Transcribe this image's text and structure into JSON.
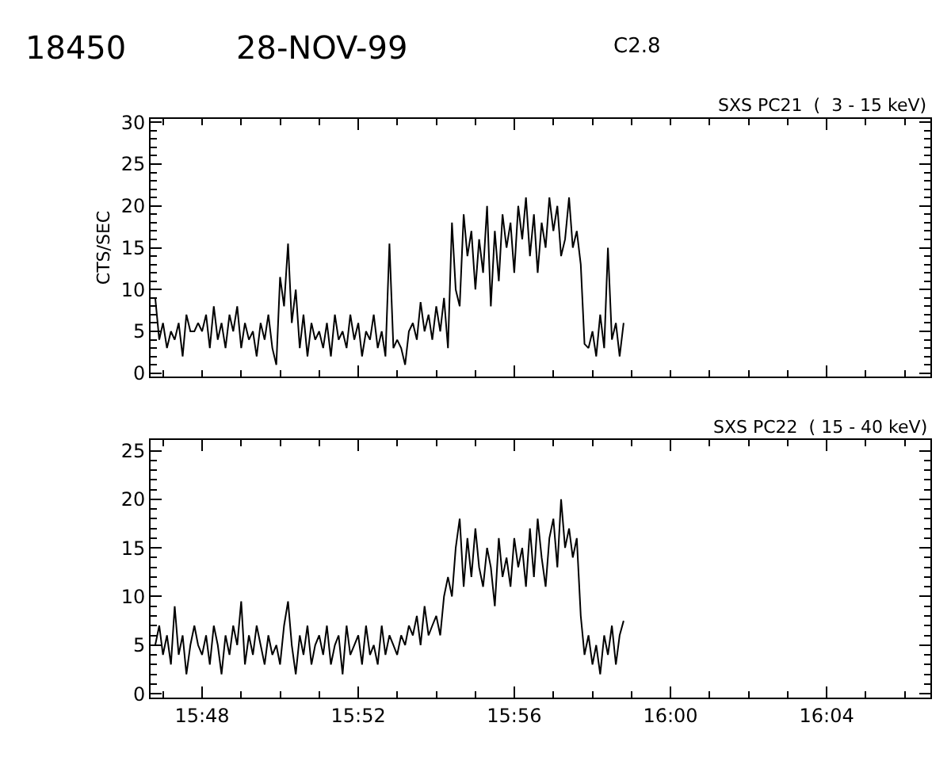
{
  "chart_data": [
    {
      "type": "line",
      "title": "18450",
      "annotations": [
        "28-NOV-99",
        "C2.8"
      ],
      "subtitle": "SXS PC21  (  3 - 15 keV)",
      "ylabel": "CTS/SEC",
      "x": [
        15.78,
        15.7817,
        15.7833,
        15.785,
        15.7867,
        15.7883,
        15.79,
        15.7917,
        15.7933,
        15.795,
        15.7967,
        15.7983,
        15.8,
        15.8017,
        15.8033,
        15.805,
        15.8067,
        15.8083,
        15.81,
        15.8117,
        15.8133,
        15.815,
        15.8167,
        15.8183,
        15.82,
        15.8217,
        15.8233,
        15.825,
        15.8267,
        15.8283,
        15.83,
        15.8317,
        15.8333,
        15.835,
        15.8367,
        15.8383,
        15.84,
        15.8417,
        15.8433,
        15.845,
        15.8467,
        15.8483,
        15.85,
        15.8517,
        15.8533,
        15.855,
        15.8567,
        15.8583,
        15.86,
        15.8617,
        15.8633,
        15.865,
        15.8667,
        15.8683,
        15.87,
        15.8717,
        15.8733,
        15.875,
        15.8767,
        15.8783,
        15.88,
        15.8817,
        15.8833,
        15.885,
        15.8867,
        15.8883,
        15.89,
        15.8917,
        15.8933,
        15.895,
        15.8967,
        15.8983,
        15.9,
        15.9017,
        15.9033,
        15.905,
        15.9067,
        15.9083,
        15.91,
        15.9117,
        15.9133,
        15.915,
        15.9167,
        15.9183,
        15.92,
        15.9217,
        15.9233,
        15.925,
        15.9267,
        15.9283,
        15.93,
        15.9317,
        15.9333,
        15.935,
        15.9367,
        15.9383,
        15.94,
        15.9417,
        15.9433,
        15.945,
        15.9467,
        15.9483,
        15.95,
        15.9517,
        15.9533,
        15.955,
        15.9567,
        15.9583,
        15.96,
        15.9617,
        15.9633,
        15.965,
        15.9667,
        15.9683,
        15.97,
        15.9717,
        15.9733,
        15.975,
        15.9767,
        15.9783,
        15.98
      ],
      "series": [
        {
          "color": "#000000",
          "values": [
            9,
            4,
            6,
            3,
            5,
            4,
            6,
            2,
            7,
            5,
            5,
            6,
            5,
            7,
            3,
            8,
            4,
            6,
            3,
            7,
            5,
            8,
            3,
            6,
            4,
            5,
            2,
            6,
            4,
            7,
            3,
            1,
            11.5,
            8,
            15.5,
            6,
            10,
            3,
            7,
            2,
            6,
            4,
            5,
            3,
            6,
            2,
            7,
            4,
            5,
            3,
            7,
            4,
            6,
            2,
            5,
            4,
            7,
            3,
            5,
            2,
            15.5,
            3,
            4,
            3,
            1,
            5,
            6,
            4,
            8.5,
            5,
            7,
            4,
            8,
            5,
            9,
            3,
            18,
            10,
            8,
            19,
            14,
            17,
            10,
            16,
            12,
            20,
            8,
            17,
            11,
            19,
            15,
            18,
            12,
            20,
            16,
            21,
            14,
            19,
            12,
            18,
            15,
            21,
            17,
            20,
            14,
            16,
            21,
            15,
            17,
            13,
            3.5,
            3,
            5,
            2,
            7,
            3,
            15,
            4,
            6,
            2,
            6
          ]
        }
      ],
      "xlim": [
        15.778,
        16.111
      ],
      "xticks": [
        {
          "value": 15.8,
          "label": null
        },
        {
          "value": 15.8667,
          "label": null
        },
        {
          "value": 15.9333,
          "label": null
        },
        {
          "value": 16.0,
          "label": null
        },
        {
          "value": 16.0667,
          "label": null
        }
      ],
      "ylim": [
        -0.4,
        30.4
      ],
      "yticks": [
        0,
        5,
        10,
        15,
        20,
        25,
        30
      ],
      "tick_labels": "y",
      "line_style": "solid",
      "marker": "none"
    },
    {
      "type": "line",
      "subtitle": "SXS PC22  ( 15 - 40 keV)",
      "x": [
        15.78,
        15.7817,
        15.7833,
        15.785,
        15.7867,
        15.7883,
        15.79,
        15.7917,
        15.7933,
        15.795,
        15.7967,
        15.7983,
        15.8,
        15.8017,
        15.8033,
        15.805,
        15.8067,
        15.8083,
        15.81,
        15.8117,
        15.8133,
        15.815,
        15.8167,
        15.8183,
        15.82,
        15.8217,
        15.8233,
        15.825,
        15.8267,
        15.8283,
        15.83,
        15.8317,
        15.8333,
        15.835,
        15.8367,
        15.8383,
        15.84,
        15.8417,
        15.8433,
        15.845,
        15.8467,
        15.8483,
        15.85,
        15.8517,
        15.8533,
        15.855,
        15.8567,
        15.8583,
        15.86,
        15.8617,
        15.8633,
        15.865,
        15.8667,
        15.8683,
        15.87,
        15.8717,
        15.8733,
        15.875,
        15.8767,
        15.8783,
        15.88,
        15.8817,
        15.8833,
        15.885,
        15.8867,
        15.8883,
        15.89,
        15.8917,
        15.8933,
        15.895,
        15.8967,
        15.8983,
        15.9,
        15.9017,
        15.9033,
        15.905,
        15.9067,
        15.9083,
        15.91,
        15.9117,
        15.9133,
        15.915,
        15.9167,
        15.9183,
        15.92,
        15.9217,
        15.9233,
        15.925,
        15.9267,
        15.9283,
        15.93,
        15.9317,
        15.9333,
        15.935,
        15.9367,
        15.9383,
        15.94,
        15.9417,
        15.9433,
        15.945,
        15.9467,
        15.9483,
        15.95,
        15.9517,
        15.9533,
        15.955,
        15.9567,
        15.9583,
        15.96,
        15.9617,
        15.9633,
        15.965,
        15.9667,
        15.9683,
        15.97,
        15.9717,
        15.9733,
        15.975,
        15.9767,
        15.9783,
        15.98
      ],
      "series": [
        {
          "color": "#000000",
          "values": [
            5,
            7,
            4,
            6,
            3,
            9,
            4,
            6,
            2,
            5,
            7,
            5,
            4,
            6,
            3,
            7,
            5,
            2,
            6,
            4,
            7,
            5,
            9.5,
            3,
            6,
            4,
            7,
            5,
            3,
            6,
            4,
            5,
            3,
            7,
            9.5,
            5,
            2,
            6,
            4,
            7,
            3,
            5,
            6,
            4,
            7,
            3,
            5,
            6,
            2,
            7,
            4,
            5,
            6,
            3,
            7,
            4,
            5,
            3,
            7,
            4,
            6,
            5,
            4,
            6,
            5,
            7,
            6,
            8,
            5,
            9,
            6,
            7,
            8,
            6,
            10,
            12,
            10,
            15,
            18,
            11,
            16,
            12,
            17,
            13,
            11,
            15,
            13,
            9,
            16,
            12,
            14,
            11,
            16,
            13,
            15,
            11,
            17,
            12,
            18,
            14,
            11,
            16,
            18,
            13,
            20,
            15,
            17,
            14,
            16,
            8,
            4,
            6,
            3,
            5,
            2,
            6,
            4,
            7,
            3,
            6,
            7.5
          ]
        }
      ],
      "xlim": [
        15.778,
        16.111
      ],
      "xticks": [
        {
          "value": 15.8,
          "label": "15:48"
        },
        {
          "value": 15.8667,
          "label": "15:52"
        },
        {
          "value": 15.9333,
          "label": "15:56"
        },
        {
          "value": 16.0,
          "label": "16:00"
        },
        {
          "value": 16.0667,
          "label": "16:04"
        }
      ],
      "ylim": [
        -0.4,
        26.1
      ],
      "yticks": [
        0,
        5,
        10,
        15,
        20,
        25
      ],
      "line_style": "solid",
      "marker": "none"
    }
  ]
}
